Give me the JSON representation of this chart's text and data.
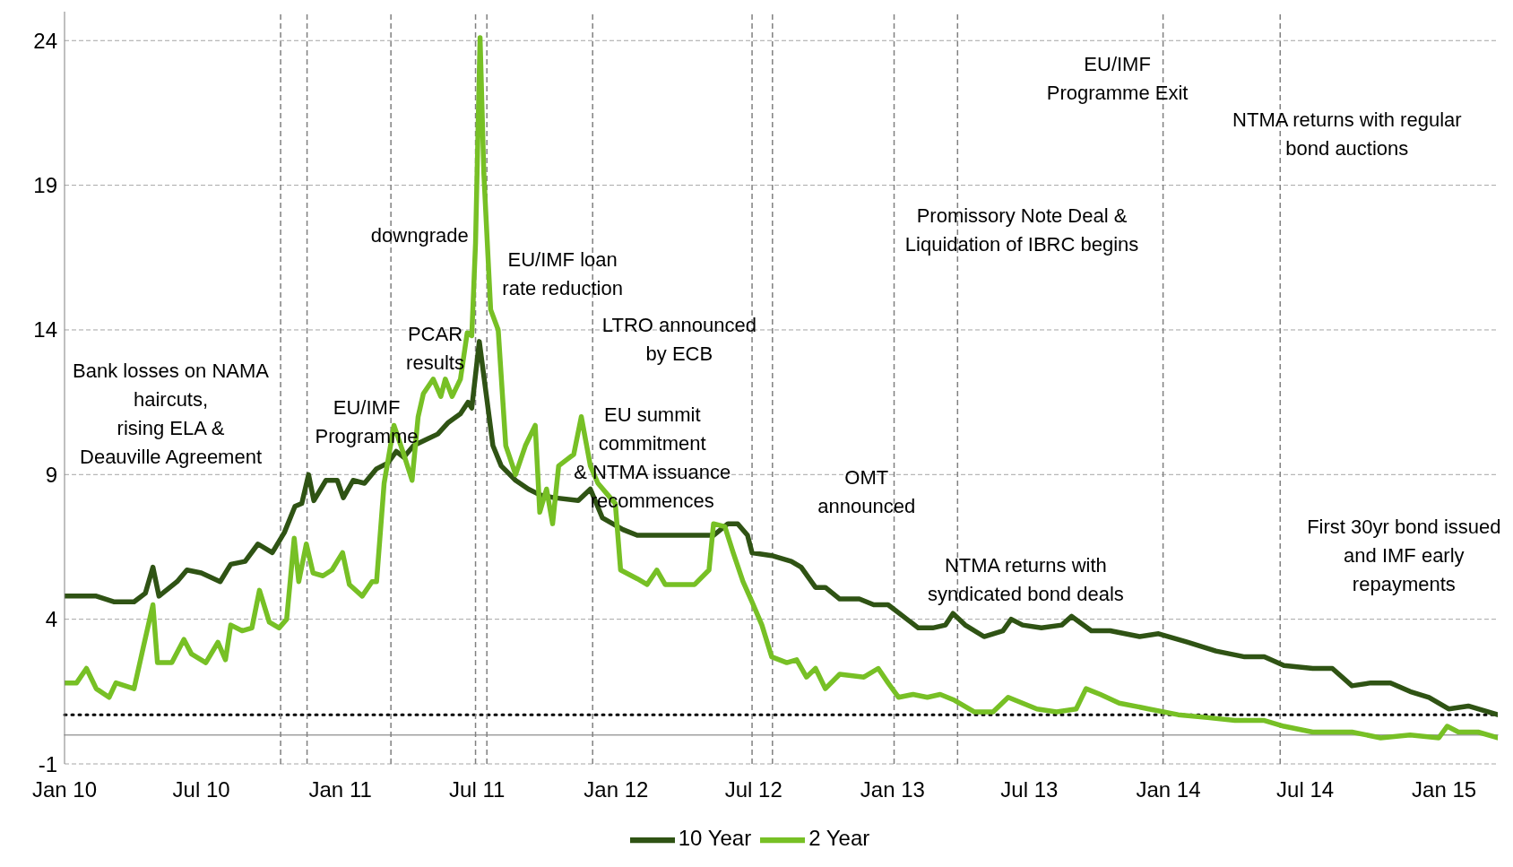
{
  "chart_data": {
    "type": "line",
    "xlim": [
      "2010-01-01",
      "2015-03-13"
    ],
    "xticks": [
      {
        "value": "2010-01-01",
        "label": "Jan 10"
      },
      {
        "value": "2010-07-01",
        "label": "Jul 10"
      },
      {
        "value": "2011-01-01",
        "label": "Jan 11"
      },
      {
        "value": "2011-07-01",
        "label": "Jul 11"
      },
      {
        "value": "2012-01-01",
        "label": "Jan 12"
      },
      {
        "value": "2012-07-01",
        "label": "Jul 12"
      },
      {
        "value": "2013-01-01",
        "label": "Jan 13"
      },
      {
        "value": "2013-07-01",
        "label": "Jul 13"
      },
      {
        "value": "2014-01-01",
        "label": "Jan 14"
      },
      {
        "value": "2014-07-01",
        "label": "Jul 14"
      },
      {
        "value": "2015-01-01",
        "label": "Jan 15"
      }
    ],
    "ylim": [
      -1,
      25
    ],
    "yticks": [
      -1,
      4,
      9,
      14,
      19,
      24
    ],
    "grid": "y",
    "legend": "bottom",
    "marker": "none",
    "line_style": "solid",
    "series": [
      {
        "name": "10 Year",
        "color": "#2f5314",
        "x": [
          "2010-01-01",
          "2010-02-12",
          "2010-03-08",
          "2010-04-03",
          "2010-04-18",
          "2010-04-28",
          "2010-05-06",
          "2010-05-30",
          "2010-06-12",
          "2010-07-01",
          "2010-07-26",
          "2010-08-09",
          "2010-08-28",
          "2010-09-14",
          "2010-10-03",
          "2010-10-19",
          "2010-11-02",
          "2010-11-11",
          "2010-11-20",
          "2010-11-27",
          "2010-12-13",
          "2010-12-28",
          "2011-01-05",
          "2011-01-18",
          "2011-02-02",
          "2011-02-18",
          "2011-03-05",
          "2011-03-16",
          "2011-03-26",
          "2011-04-08",
          "2011-04-24",
          "2011-05-10",
          "2011-05-24",
          "2011-06-09",
          "2011-06-19",
          "2011-06-24",
          "2011-07-04",
          "2011-07-13",
          "2011-07-22",
          "2011-08-02",
          "2011-08-21",
          "2011-09-07",
          "2011-09-22",
          "2011-10-11",
          "2011-11-12",
          "2011-11-28",
          "2011-12-14",
          "2012-01-10",
          "2012-01-29",
          "2012-03-19",
          "2012-05-09",
          "2012-05-28",
          "2012-06-10",
          "2012-06-23",
          "2012-06-29",
          "2012-07-25",
          "2012-08-20",
          "2012-09-02",
          "2012-09-21",
          "2012-10-04",
          "2012-10-23",
          "2012-11-18",
          "2012-12-07",
          "2012-12-26",
          "2013-01-15",
          "2013-02-04",
          "2013-02-23",
          "2013-03-12",
          "2013-03-22",
          "2013-04-07",
          "2013-05-02",
          "2013-05-27",
          "2013-06-07",
          "2013-06-22",
          "2013-07-17",
          "2013-08-13",
          "2013-08-26",
          "2013-09-21",
          "2013-10-16",
          "2013-11-24",
          "2013-12-19",
          "2014-01-27",
          "2014-03-05",
          "2014-04-12",
          "2014-05-08",
          "2014-06-03",
          "2014-07-11",
          "2014-08-06",
          "2014-09-01",
          "2014-09-26",
          "2014-10-22",
          "2014-11-17",
          "2014-12-12",
          "2015-01-07",
          "2015-02-02",
          "2015-03-13"
        ],
        "values": [
          4.8,
          4.8,
          4.6,
          4.6,
          4.9,
          5.8,
          4.8,
          5.3,
          5.7,
          5.6,
          5.3,
          5.9,
          6.0,
          6.6,
          6.3,
          7.0,
          7.9,
          8.0,
          9.0,
          8.1,
          8.8,
          8.8,
          8.2,
          8.8,
          8.7,
          9.2,
          9.4,
          9.8,
          9.6,
          10.0,
          10.2,
          10.4,
          10.8,
          11.1,
          11.5,
          11.3,
          13.6,
          11.8,
          10.0,
          9.3,
          8.8,
          8.5,
          8.3,
          8.2,
          8.1,
          8.5,
          7.5,
          7.1,
          6.9,
          6.9,
          6.9,
          7.3,
          7.3,
          6.9,
          6.3,
          6.2,
          6.0,
          5.8,
          5.1,
          5.1,
          4.7,
          4.7,
          4.5,
          4.5,
          4.1,
          3.7,
          3.7,
          3.8,
          4.2,
          3.8,
          3.4,
          3.6,
          4.0,
          3.8,
          3.7,
          3.8,
          4.1,
          3.6,
          3.6,
          3.4,
          3.5,
          3.2,
          2.9,
          2.7,
          2.7,
          2.4,
          2.3,
          2.3,
          1.7,
          1.8,
          1.8,
          1.5,
          1.3,
          0.9,
          1.0,
          0.7
        ]
      },
      {
        "name": "2 Year",
        "color": "#77c025",
        "x": [
          "2010-01-01",
          "2010-01-17",
          "2010-01-30",
          "2010-02-12",
          "2010-03-01",
          "2010-03-10",
          "2010-04-03",
          "2010-04-15",
          "2010-04-28",
          "2010-05-04",
          "2010-05-23",
          "2010-06-08",
          "2010-06-18",
          "2010-07-07",
          "2010-07-23",
          "2010-08-02",
          "2010-08-09",
          "2010-08-24",
          "2010-09-06",
          "2010-09-16",
          "2010-09-29",
          "2010-10-12",
          "2010-10-22",
          "2010-11-01",
          "2010-11-07",
          "2010-11-17",
          "2010-11-26",
          "2010-12-09",
          "2010-12-21",
          "2011-01-04",
          "2011-01-13",
          "2011-01-30",
          "2011-02-12",
          "2011-02-18",
          "2011-02-28",
          "2011-03-13",
          "2011-03-26",
          "2011-04-06",
          "2011-04-14",
          "2011-04-21",
          "2011-05-04",
          "2011-05-14",
          "2011-05-20",
          "2011-05-29",
          "2011-06-09",
          "2011-06-18",
          "2011-06-24",
          "2011-06-29",
          "2011-07-05",
          "2011-07-10",
          "2011-07-19",
          "2011-07-29",
          "2011-08-08",
          "2011-08-21",
          "2011-09-03",
          "2011-09-16",
          "2011-09-22",
          "2011-10-01",
          "2011-10-09",
          "2011-10-17",
          "2011-10-27",
          "2011-11-06",
          "2011-11-16",
          "2011-11-28",
          "2011-12-08",
          "2011-12-21",
          "2011-12-31",
          "2012-01-07",
          "2012-01-29",
          "2012-02-11",
          "2012-02-24",
          "2012-03-06",
          "2012-04-14",
          "2012-05-03",
          "2012-05-09",
          "2012-05-24",
          "2012-06-04",
          "2012-06-17",
          "2012-06-29",
          "2012-07-12",
          "2012-07-25",
          "2012-08-14",
          "2012-08-27",
          "2012-09-09",
          "2012-09-21",
          "2012-10-04",
          "2012-10-23",
          "2012-11-24",
          "2012-12-13",
          "2012-12-26",
          "2013-01-09",
          "2013-01-28",
          "2013-02-16",
          "2013-03-05",
          "2013-03-24",
          "2013-04-19",
          "2013-05-14",
          "2013-06-03",
          "2013-06-22",
          "2013-07-11",
          "2013-08-06",
          "2013-09-01",
          "2013-09-14",
          "2013-10-03",
          "2013-10-28",
          "2013-12-06",
          "2014-01-14",
          "2014-02-22",
          "2014-03-30",
          "2014-05-08",
          "2014-06-03",
          "2014-07-11",
          "2014-09-01",
          "2014-10-09",
          "2014-11-17",
          "2014-12-25",
          "2015-01-05",
          "2015-01-20",
          "2015-02-15",
          "2015-03-13"
        ],
        "values": [
          1.8,
          1.8,
          2.3,
          1.6,
          1.3,
          1.8,
          1.6,
          3.0,
          4.5,
          2.5,
          2.5,
          3.3,
          2.8,
          2.5,
          3.2,
          2.6,
          3.8,
          3.6,
          3.7,
          5.0,
          3.9,
          3.7,
          4.0,
          6.8,
          5.3,
          6.6,
          5.6,
          5.5,
          5.7,
          6.3,
          5.2,
          4.8,
          5.3,
          5.3,
          8.7,
          10.7,
          9.7,
          8.8,
          11.0,
          11.8,
          12.3,
          11.7,
          12.3,
          11.7,
          12.3,
          13.9,
          13.8,
          17.0,
          24.1,
          19.4,
          14.7,
          14.0,
          10.0,
          9.0,
          10.0,
          10.7,
          7.7,
          8.5,
          7.3,
          9.3,
          9.5,
          9.7,
          11.0,
          9.3,
          8.7,
          8.3,
          8.0,
          5.7,
          5.4,
          5.2,
          5.7,
          5.2,
          5.2,
          5.7,
          7.3,
          7.2,
          6.3,
          5.3,
          4.6,
          3.8,
          2.7,
          2.5,
          2.6,
          2.0,
          2.3,
          1.6,
          2.1,
          2.0,
          2.3,
          1.8,
          1.3,
          1.4,
          1.3,
          1.4,
          1.2,
          0.8,
          0.8,
          1.3,
          1.1,
          0.9,
          0.8,
          0.9,
          1.6,
          1.4,
          1.1,
          0.9,
          0.7,
          0.6,
          0.5,
          0.5,
          0.3,
          0.1,
          0.1,
          -0.1,
          0.0,
          -0.1,
          0.3,
          0.1,
          0.1,
          -0.1
        ]
      }
    ],
    "ref_lines": [
      {
        "axis": "y",
        "value": 0.7,
        "color": "#000000",
        "line_style": "dotted"
      },
      {
        "axis": "y",
        "value": 0,
        "color": "#a0a0a0",
        "line_style": "solid"
      },
      {
        "axis": "x",
        "value": "2010-10-14",
        "color": "#808080",
        "line_style": "dashed"
      },
      {
        "axis": "x",
        "value": "2010-11-18",
        "color": "#808080",
        "line_style": "dashed"
      },
      {
        "axis": "x",
        "value": "2011-03-09",
        "color": "#808080",
        "line_style": "dashed"
      },
      {
        "axis": "x",
        "value": "2011-06-29",
        "color": "#808080",
        "line_style": "dashed"
      },
      {
        "axis": "x",
        "value": "2011-07-14",
        "color": "#808080",
        "line_style": "dashed"
      },
      {
        "axis": "x",
        "value": "2011-12-01",
        "color": "#808080",
        "line_style": "dashed"
      },
      {
        "axis": "x",
        "value": "2012-06-29",
        "color": "#808080",
        "line_style": "dashed"
      },
      {
        "axis": "x",
        "value": "2012-07-26",
        "color": "#808080",
        "line_style": "dashed"
      },
      {
        "axis": "x",
        "value": "2013-01-03",
        "color": "#808080",
        "line_style": "dashed"
      },
      {
        "axis": "x",
        "value": "2013-03-28",
        "color": "#808080",
        "line_style": "dashed"
      },
      {
        "axis": "x",
        "value": "2013-12-25",
        "color": "#808080",
        "line_style": "dashed"
      },
      {
        "axis": "x",
        "value": "2014-05-29",
        "color": "#808080",
        "line_style": "dashed"
      }
    ],
    "annotations": [
      "Bank losses on NAMA\nhaircuts,\nrising ELA &\nDeauville Agreement",
      "EU/IMF\nProgramme",
      "PCAR\nresults",
      "downgrade",
      "EU/IMF loan\nrate reduction",
      "LTRO announced\nby ECB",
      "EU summit\ncommitment\n& NTMA issuance\nrecommences",
      "OMT\nannounced",
      "Promissory Note Deal &\nLiquidation of IBRC begins",
      "NTMA returns with\nsyndicated bond deals",
      "EU/IMF\nProgramme Exit",
      "NTMA returns with regular\nbond auctions",
      "First 30yr bond issued\nand IMF early\nrepayments"
    ]
  }
}
